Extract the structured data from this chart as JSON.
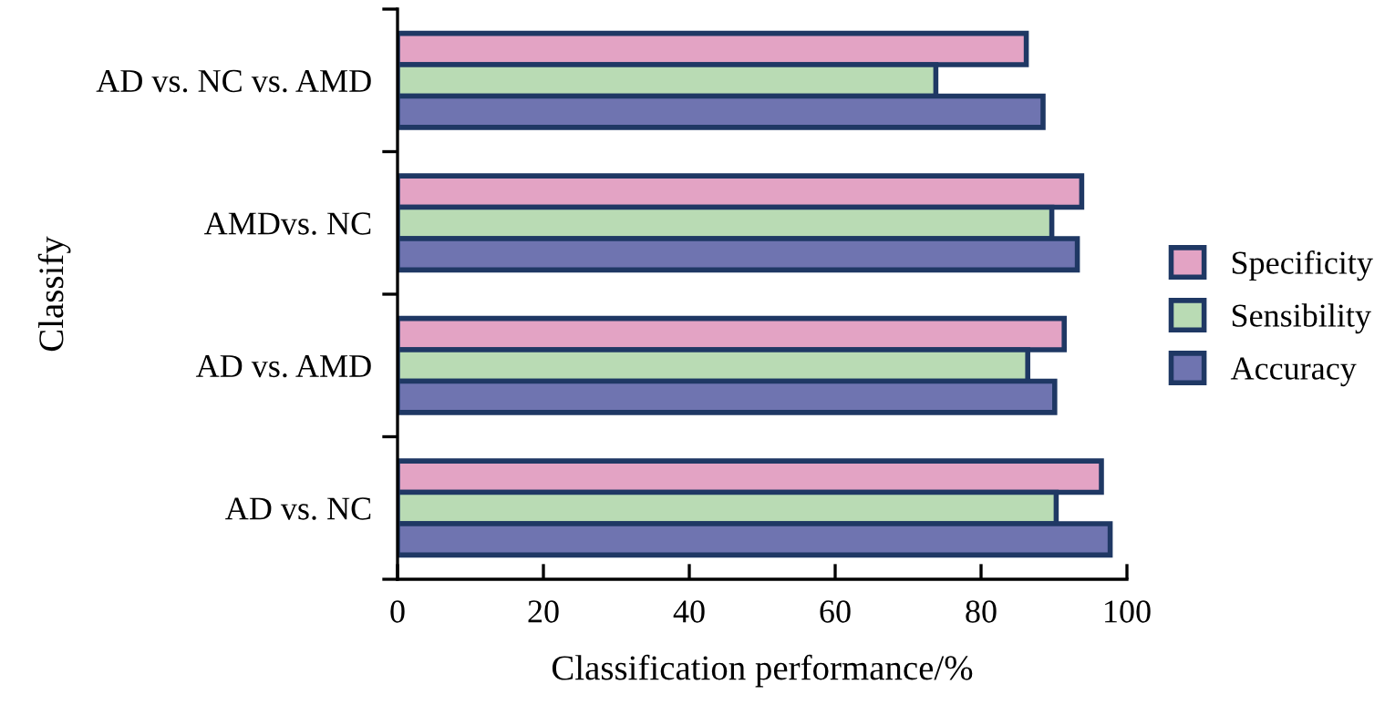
{
  "chart_data": {
    "type": "bar",
    "orientation": "horizontal",
    "xlabel": "Classification performance/%",
    "ylabel": "Classify",
    "categories": [
      "AD vs. NC vs. AMD",
      "AMDvs. NC",
      "AD vs. AMD",
      "AD vs. NC"
    ],
    "series": [
      {
        "name": "Specificity",
        "color": "#e3a3c4",
        "values": [
          86.2,
          93.8,
          91.4,
          96.5
        ]
      },
      {
        "name": "Sensibility",
        "color": "#b9dbb4",
        "values": [
          73.8,
          89.7,
          86.4,
          90.3
        ]
      },
      {
        "name": "Accuracy",
        "color": "#6f74b0",
        "values": [
          88.5,
          93.2,
          90.1,
          97.7
        ]
      }
    ],
    "xlim": [
      0,
      100
    ],
    "xticks": [
      0,
      20,
      40,
      60,
      80,
      100
    ],
    "grid": false,
    "legend": "right"
  }
}
